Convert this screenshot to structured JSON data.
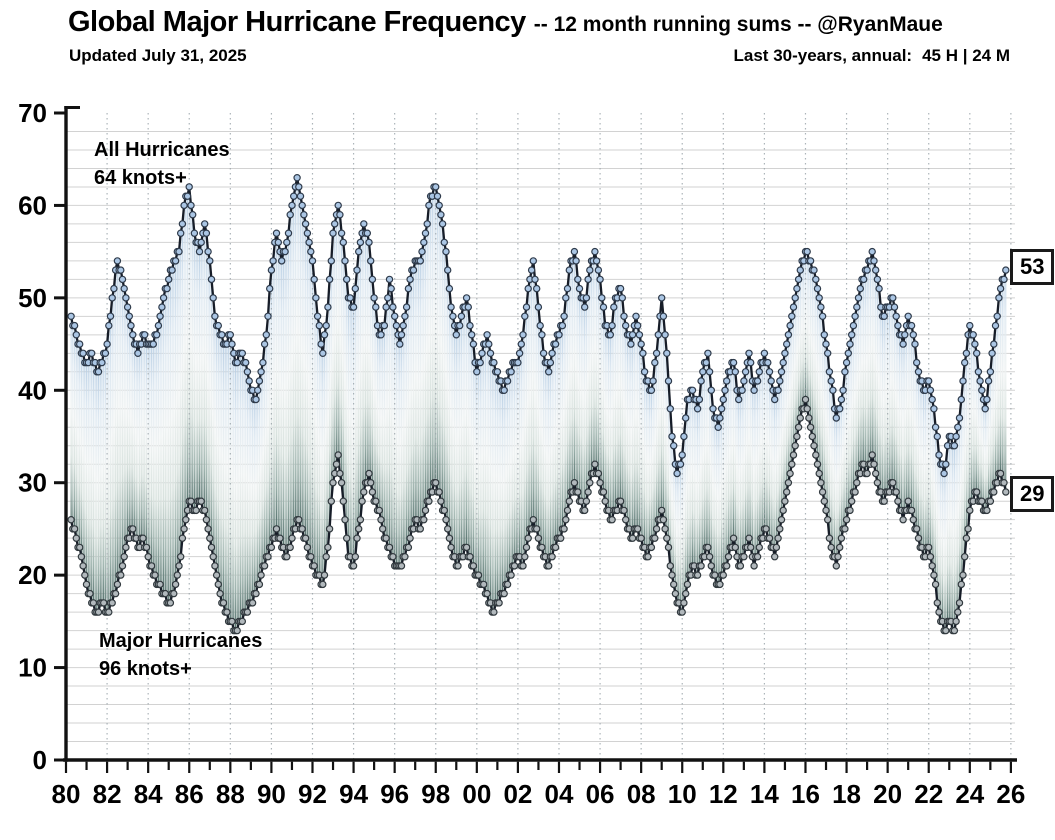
{
  "header": {
    "title": "Global Major Hurricane Frequency",
    "title_suffix": "-- 12 month running sums -- @RyanMaue",
    "updated": "Updated July 31, 2025",
    "stats_label": "Last 30-years, annual:",
    "stats_value": "45 H | 24 M"
  },
  "chart_data": {
    "type": "line",
    "title": "Global Major Hurricane Frequency",
    "subtitle": "12 month running sums",
    "xlabel": "",
    "ylabel": "",
    "x_start": 1980.25,
    "x_step": 0.25,
    "x_axis": {
      "min": 1980,
      "max": 2026.2,
      "tick_step": 2,
      "tick_labels": [
        "80",
        "82",
        "84",
        "86",
        "88",
        "90",
        "92",
        "94",
        "96",
        "98",
        "00",
        "02",
        "04",
        "06",
        "08",
        "10",
        "12",
        "14",
        "16",
        "18",
        "20",
        "22",
        "24",
        "26"
      ]
    },
    "y_axis": {
      "min": 0,
      "max": 70,
      "major_step": 10,
      "minor_step": 2
    },
    "grid": true,
    "legend_position": "inside-annotations",
    "annotations": {
      "upper": {
        "line1": "All Hurricanes",
        "line2": "64 knots+"
      },
      "lower": {
        "line1": "Major Hurricanes",
        "line2": "96 knots+"
      }
    },
    "end_value_boxes": [
      {
        "series": "all-hurricanes",
        "value": "53"
      },
      {
        "series": "major-hurricanes",
        "value": "29"
      }
    ],
    "series": [
      {
        "name": "All Hurricanes (64 knots+)",
        "marker_fill": "#abc6e4",
        "marker_stroke": "#2e3a4a",
        "values": [
          48,
          46,
          44,
          43,
          44,
          42,
          43,
          45,
          50,
          54,
          52,
          49,
          46,
          44,
          46,
          45,
          45,
          47,
          50,
          52,
          54,
          55,
          60,
          62,
          57,
          55,
          58,
          54,
          48,
          46,
          45,
          46,
          43,
          44,
          43,
          40,
          39,
          42,
          46,
          53,
          57,
          54,
          56,
          60,
          63,
          60,
          57,
          54,
          48,
          44,
          49,
          57,
          60,
          56,
          50,
          49,
          55,
          58,
          56,
          50,
          46,
          47,
          52,
          48,
          45,
          48,
          52,
          54,
          54,
          57,
          61,
          62,
          59,
          55,
          49,
          46,
          48,
          50,
          46,
          42,
          44,
          46,
          43,
          42,
          40,
          41,
          43,
          43,
          46,
          51,
          54,
          49,
          44,
          42,
          45,
          46,
          48,
          53,
          55,
          51,
          49,
          53,
          55,
          52,
          47,
          46,
          50,
          51,
          47,
          45,
          48,
          45,
          41,
          40,
          44,
          50,
          44,
          35,
          31,
          33,
          39,
          40,
          38,
          42,
          44,
          38,
          36,
          39,
          42,
          43,
          39,
          41,
          44,
          40,
          42,
          44,
          42,
          39,
          41,
          44,
          47,
          50,
          53,
          55,
          54,
          52,
          49,
          45,
          41,
          37,
          39,
          43,
          46,
          49,
          52,
          53,
          55,
          52,
          48,
          49,
          50,
          47,
          45,
          48,
          46,
          42,
          40,
          41,
          38,
          33,
          31,
          35,
          34,
          37,
          43,
          47,
          45,
          41,
          38,
          42,
          47,
          51,
          53
        ]
      },
      {
        "name": "Major Hurricanes (96 knots+)",
        "marker_fill": "#b2b9bd",
        "marker_stroke": "#31393e",
        "values": [
          26,
          24,
          22,
          19,
          17,
          16,
          17,
          16,
          17,
          19,
          21,
          24,
          25,
          23,
          24,
          22,
          20,
          19,
          18,
          17,
          18,
          21,
          25,
          28,
          27,
          28,
          27,
          24,
          21,
          18,
          16,
          15,
          14,
          15,
          16,
          17,
          18,
          20,
          22,
          23,
          25,
          23,
          22,
          24,
          26,
          25,
          23,
          21,
          20,
          19,
          23,
          30,
          33,
          28,
          22,
          21,
          25,
          29,
          31,
          28,
          27,
          24,
          23,
          21,
          21,
          22,
          24,
          26,
          25,
          27,
          29,
          30,
          28,
          26,
          23,
          21,
          22,
          23,
          21,
          20,
          19,
          18,
          16,
          17,
          18,
          19,
          21,
          22,
          21,
          24,
          26,
          24,
          22,
          21,
          23,
          24,
          25,
          28,
          30,
          28,
          27,
          30,
          32,
          30,
          28,
          26,
          27,
          28,
          26,
          24,
          25,
          24,
          22,
          23,
          25,
          27,
          24,
          20,
          17,
          16,
          19,
          21,
          20,
          22,
          23,
          20,
          19,
          20,
          22,
          24,
          21,
          22,
          24,
          21,
          23,
          25,
          24,
          22,
          25,
          28,
          31,
          34,
          37,
          39,
          36,
          33,
          30,
          27,
          23,
          21,
          24,
          26,
          28,
          30,
          32,
          31,
          33,
          30,
          28,
          29,
          30,
          28,
          26,
          28,
          26,
          24,
          22,
          23,
          20,
          16,
          14,
          15,
          14,
          17,
          22,
          27,
          29,
          28,
          27,
          28,
          30,
          31,
          29
        ]
      }
    ],
    "colors": {
      "line": "#171d28",
      "grid": "#d2d2d2",
      "grid_dash": "#98a2a8",
      "axis": "#111111",
      "fill_gradient": [
        {
          "offset": "0%",
          "color": "#b3cbe2",
          "opacity": "0.9"
        },
        {
          "offset": "20%",
          "color": "#dde8f1",
          "opacity": "0.92"
        },
        {
          "offset": "45%",
          "color": "#eef2f2",
          "opacity": "0.95"
        },
        {
          "offset": "68%",
          "color": "#d8e2de",
          "opacity": "1"
        },
        {
          "offset": "85%",
          "color": "#9cb2ac",
          "opacity": "1"
        },
        {
          "offset": "100%",
          "color": "#4f6d68",
          "opacity": "1"
        }
      ]
    }
  }
}
